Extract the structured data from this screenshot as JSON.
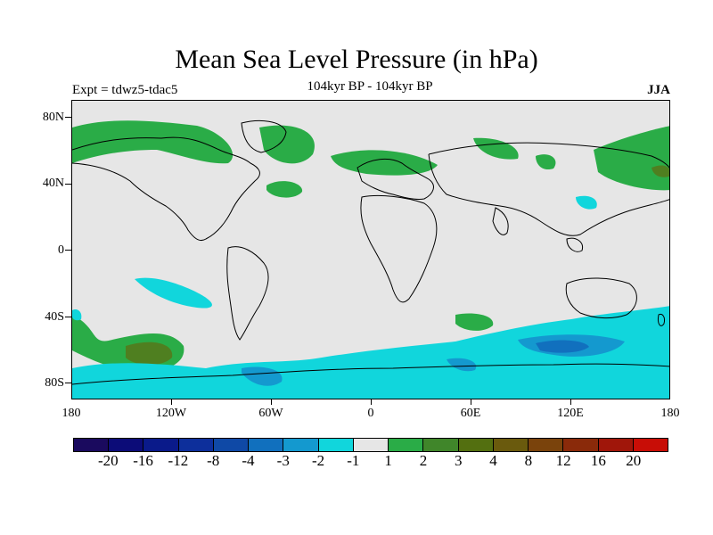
{
  "title": "Mean Sea Level Pressure (in hPa)",
  "subtitle_center": "104kyr BP - 104kyr BP",
  "subtitle_left": "Expt = tdwz5-tdac5",
  "subtitle_right": "JJA",
  "lat_ticks": [
    "80N",
    "40N",
    "0",
    "40S",
    "80S"
  ],
  "lon_ticks": [
    "180",
    "120W",
    "60W",
    "0",
    "60E",
    "120E",
    "180"
  ],
  "colorbar": {
    "colors": [
      "#1a0a5e",
      "#0c0c78",
      "#0a1a8a",
      "#0d2f9b",
      "#0f49a6",
      "#1170be",
      "#1499cf",
      "#11d6dc",
      "#e6e6e6",
      "#2aac47",
      "#40862a",
      "#536f10",
      "#6a5a0d",
      "#7a430c",
      "#8a2a0a",
      "#a0160a",
      "#c80d06"
    ],
    "labels": [
      "-20",
      "-16",
      "-12",
      "-8",
      "-4",
      "-3",
      "-2",
      "-1",
      "1",
      "2",
      "3",
      "4",
      "8",
      "12",
      "16",
      "20"
    ]
  },
  "map_colors": {
    "ocean_background": "#e6e6e6",
    "positive_low": "#2aac47",
    "positive_mid": "#4f7f20",
    "negative_low": "#11d6dc",
    "negative_mid": "#1499cf",
    "negative_high": "#1170be",
    "coastline": "#000000"
  }
}
